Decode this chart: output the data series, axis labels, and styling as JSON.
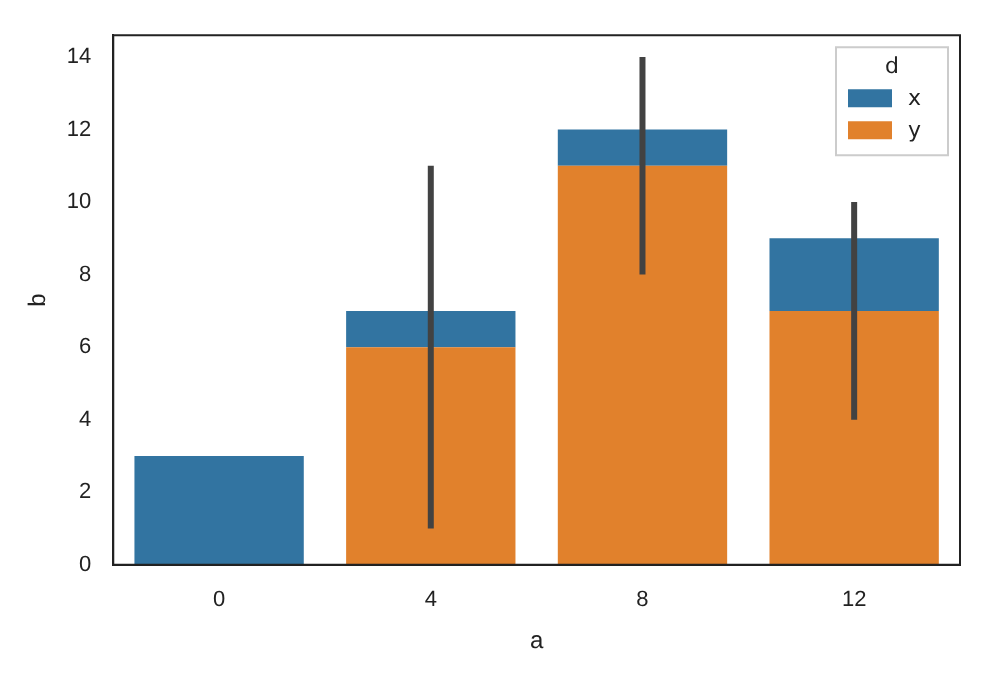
{
  "chart_data": {
    "type": "bar",
    "xlabel": "a",
    "ylabel": "b",
    "legend_title": "d",
    "categories": [
      "0",
      "4",
      "8",
      "12"
    ],
    "series": [
      {
        "name": "y",
        "color": "#e1812c",
        "values": [
          null,
          6,
          11,
          7
        ],
        "errors": [
          null,
          [
            1,
            11
          ],
          [
            8,
            14
          ],
          [
            4,
            10
          ]
        ]
      },
      {
        "name": "x",
        "color": "#3274a1",
        "values": [
          3,
          1,
          1,
          2
        ]
      }
    ],
    "stacked": true,
    "ylim": [
      0,
      14.6
    ],
    "yticks": [
      0,
      2,
      4,
      6,
      8,
      10,
      12,
      14
    ],
    "grid": false,
    "legend": "top right"
  }
}
